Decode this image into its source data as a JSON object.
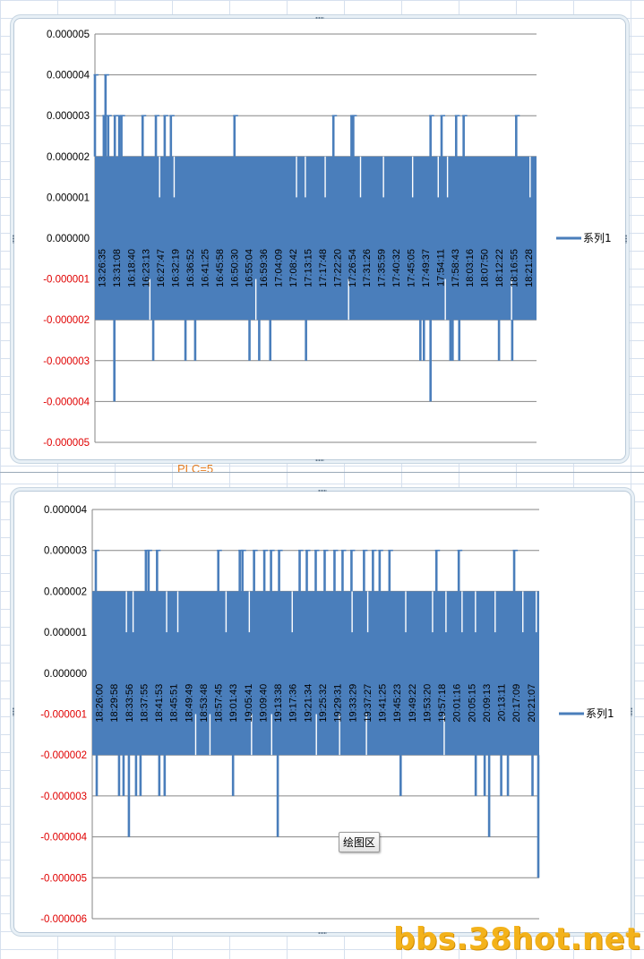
{
  "charts": [
    {
      "type": "line",
      "y_tick_labels": [
        "0.000005",
        "0.000004",
        "0.000003",
        "0.000002",
        "0.000001",
        "0.000000",
        "-0.000001",
        "-0.000002",
        "-0.000003",
        "-0.000004",
        "-0.000005"
      ],
      "ylim": [
        -5e-06,
        5e-06
      ],
      "x_tick_labels": [
        "13:26:35",
        "13:31:08",
        "16:18:40",
        "16:23:13",
        "16:27:47",
        "16:32:19",
        "16:36:52",
        "16:41:25",
        "16:45:58",
        "16:50:30",
        "16:55:04",
        "16:59:36",
        "17:04:09",
        "17:08:42",
        "17:13:15",
        "17:17:48",
        "17:22:20",
        "17:26:54",
        "17:31:26",
        "17:35:59",
        "17:40:32",
        "17:45:05",
        "17:49:37",
        "17:54:11",
        "17:58:43",
        "18:03:16",
        "18:07:50",
        "18:12:22",
        "18:16:55",
        "18:21:28"
      ],
      "series": [
        {
          "name": "系列1",
          "color": "#4a7ebb"
        }
      ],
      "band": {
        "top": 2e-06,
        "bottom": -2e-06
      },
      "spikes": [
        {
          "x": 0.0,
          "y": 4e-06
        },
        {
          "x": 0.02,
          "y": 3e-06
        },
        {
          "x": 0.024,
          "y": 4e-06
        },
        {
          "x": 0.03,
          "y": 3e-06
        },
        {
          "x": 0.045,
          "y": 3e-06
        },
        {
          "x": 0.055,
          "y": 3e-06
        },
        {
          "x": 0.06,
          "y": 3e-06
        },
        {
          "x": 0.108,
          "y": 3e-06
        },
        {
          "x": 0.138,
          "y": 3e-06
        },
        {
          "x": 0.158,
          "y": 3e-06
        },
        {
          "x": 0.172,
          "y": 3e-06
        },
        {
          "x": 0.316,
          "y": 3e-06
        },
        {
          "x": 0.54,
          "y": 3e-06
        },
        {
          "x": 0.581,
          "y": 3e-06
        },
        {
          "x": 0.585,
          "y": 3e-06
        },
        {
          "x": 0.76,
          "y": 3e-06
        },
        {
          "x": 0.785,
          "y": 3e-06
        },
        {
          "x": 0.818,
          "y": 3e-06
        },
        {
          "x": 0.835,
          "y": 3e-06
        },
        {
          "x": 0.954,
          "y": 3e-06
        },
        {
          "x": 0.044,
          "y": -4e-06
        },
        {
          "x": 0.132,
          "y": -3e-06
        },
        {
          "x": 0.205,
          "y": -3e-06
        },
        {
          "x": 0.227,
          "y": -3e-06
        },
        {
          "x": 0.35,
          "y": -3e-06
        },
        {
          "x": 0.372,
          "y": -3e-06
        },
        {
          "x": 0.397,
          "y": -3e-06
        },
        {
          "x": 0.478,
          "y": -3e-06
        },
        {
          "x": 0.737,
          "y": -3e-06
        },
        {
          "x": 0.745,
          "y": -3e-06
        },
        {
          "x": 0.76,
          "y": -4e-06
        },
        {
          "x": 0.805,
          "y": -3e-06
        },
        {
          "x": 0.81,
          "y": -3e-06
        },
        {
          "x": 0.825,
          "y": -3e-06
        },
        {
          "x": 0.915,
          "y": -3e-06
        },
        {
          "x": 0.945,
          "y": -3e-06
        }
      ],
      "gaps_top": [
        0.145,
        0.178,
        0.455,
        0.475,
        0.52,
        0.6,
        0.652,
        0.718,
        0.776,
        0.797,
        0.984
      ],
      "gaps_bottom": [
        0.123,
        0.363,
        0.573,
        0.792,
        0.942
      ]
    },
    {
      "type": "line",
      "y_tick_labels": [
        "0.000004",
        "0.000003",
        "0.000002",
        "0.000001",
        "0.000000",
        "-0.000001",
        "-0.000002",
        "-0.000003",
        "-0.000004",
        "-0.000005",
        "-0.000006"
      ],
      "ylim": [
        -6e-06,
        4e-06
      ],
      "x_tick_labels": [
        "18:26:00",
        "18:29:58",
        "18:33:56",
        "18:37:55",
        "18:41:53",
        "18:45:51",
        "18:49:49",
        "18:53:48",
        "18:57:45",
        "19:01:43",
        "19:05:41",
        "19:09:40",
        "19:13:38",
        "19:17:36",
        "19:21:34",
        "19:25:32",
        "19:29:31",
        "19:33:29",
        "19:37:27",
        "19:41:25",
        "19:45:23",
        "19:49:22",
        "19:53:20",
        "19:57:18",
        "20:01:16",
        "20:05:15",
        "20:09:13",
        "20:13:11",
        "20:17:09",
        "20:21:07"
      ],
      "series": [
        {
          "name": "系列1",
          "color": "#4a7ebb"
        }
      ],
      "band": {
        "top": 2e-06,
        "bottom": -2e-06
      },
      "spikes": [
        {
          "x": 0.008,
          "y": 3e-06
        },
        {
          "x": 0.12,
          "y": 3e-06
        },
        {
          "x": 0.126,
          "y": 3e-06
        },
        {
          "x": 0.145,
          "y": 3e-06
        },
        {
          "x": 0.282,
          "y": 3e-06
        },
        {
          "x": 0.33,
          "y": 3e-06
        },
        {
          "x": 0.336,
          "y": 3e-06
        },
        {
          "x": 0.362,
          "y": 3e-06
        },
        {
          "x": 0.385,
          "y": 3e-06
        },
        {
          "x": 0.4,
          "y": 3e-06
        },
        {
          "x": 0.418,
          "y": 3e-06
        },
        {
          "x": 0.464,
          "y": 3e-06
        },
        {
          "x": 0.48,
          "y": 3e-06
        },
        {
          "x": 0.5,
          "y": 3e-06
        },
        {
          "x": 0.52,
          "y": 3e-06
        },
        {
          "x": 0.542,
          "y": 3e-06
        },
        {
          "x": 0.56,
          "y": 3e-06
        },
        {
          "x": 0.58,
          "y": 3e-06
        },
        {
          "x": 0.608,
          "y": 3e-06
        },
        {
          "x": 0.628,
          "y": 3e-06
        },
        {
          "x": 0.643,
          "y": 3e-06
        },
        {
          "x": 0.665,
          "y": 3e-06
        },
        {
          "x": 0.77,
          "y": 3e-06
        },
        {
          "x": 0.82,
          "y": 3e-06
        },
        {
          "x": 0.944,
          "y": 3e-06
        },
        {
          "x": 0.01,
          "y": -3e-06
        },
        {
          "x": 0.06,
          "y": -3e-06
        },
        {
          "x": 0.07,
          "y": -3e-06
        },
        {
          "x": 0.082,
          "y": -4e-06
        },
        {
          "x": 0.098,
          "y": -3e-06
        },
        {
          "x": 0.108,
          "y": -3e-06
        },
        {
          "x": 0.15,
          "y": -3e-06
        },
        {
          "x": 0.162,
          "y": -3e-06
        },
        {
          "x": 0.315,
          "y": -3e-06
        },
        {
          "x": 0.415,
          "y": -4e-06
        },
        {
          "x": 0.69,
          "y": -3e-06
        },
        {
          "x": 0.858,
          "y": -3e-06
        },
        {
          "x": 0.878,
          "y": -3e-06
        },
        {
          "x": 0.888,
          "y": -4e-06
        },
        {
          "x": 0.915,
          "y": -3e-06
        },
        {
          "x": 0.93,
          "y": -3e-06
        },
        {
          "x": 0.985,
          "y": -3e-06
        },
        {
          "x": 0.998,
          "y": -5e-06
        }
      ],
      "gaps_top": [
        0.075,
        0.09,
        0.165,
        0.19,
        0.298,
        0.35,
        0.446,
        0.58,
        0.615,
        0.7,
        0.76,
        0.79,
        0.826,
        0.856,
        0.9,
        0.962,
        0.992
      ],
      "gaps_bottom": [
        0.23,
        0.262,
        0.355,
        0.4,
        0.5,
        0.552,
        0.612,
        0.786
      ]
    }
  ],
  "plc_label": "PLC=5",
  "tooltip": "绘图区",
  "watermark": "bbs.38hot.net"
}
